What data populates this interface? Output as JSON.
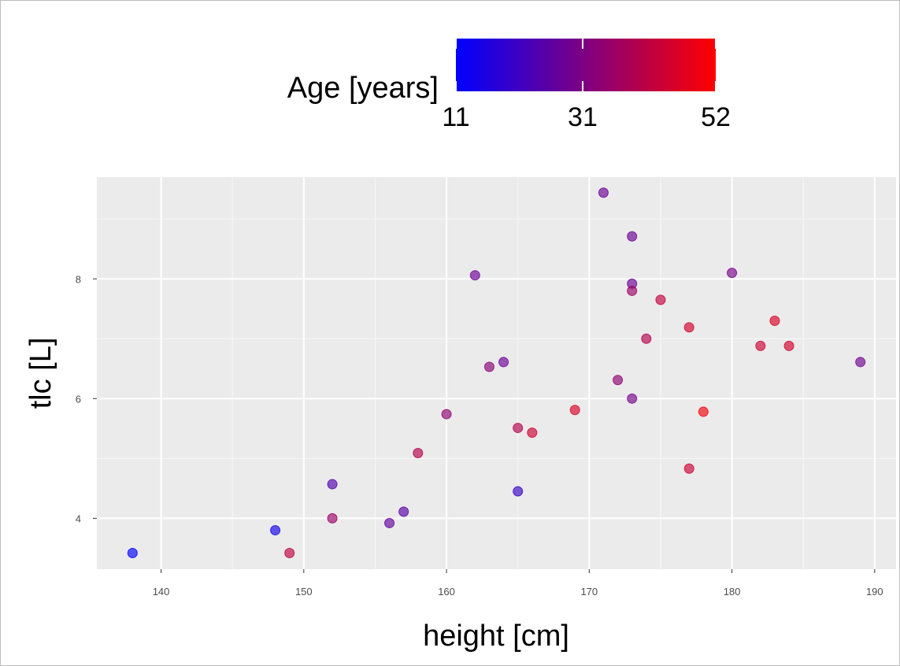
{
  "chart_data": {
    "type": "scatter",
    "xlabel": "height [cm]",
    "ylabel": "tlc [L]",
    "xlim": [
      135.5,
      191.5
    ],
    "ylim": [
      3.15,
      9.7
    ],
    "x_ticks": [
      140,
      150,
      160,
      170,
      180,
      190
    ],
    "y_ticks": [
      4,
      6,
      8
    ],
    "grid": true,
    "legend": {
      "title": "Age [years]",
      "placement": "top",
      "type": "colorbar",
      "min": 11,
      "max": 52,
      "ticks": [
        11,
        31,
        52
      ],
      "low_color": "#0000ff",
      "high_color": "#ff0000"
    },
    "points": [
      {
        "x": 138,
        "y": 3.42,
        "age": 11
      },
      {
        "x": 148,
        "y": 3.8,
        "age": 14
      },
      {
        "x": 149,
        "y": 3.42,
        "age": 42
      },
      {
        "x": 152,
        "y": 4.57,
        "age": 24
      },
      {
        "x": 152,
        "y": 4.0,
        "age": 36
      },
      {
        "x": 156,
        "y": 3.92,
        "age": 27
      },
      {
        "x": 157,
        "y": 4.11,
        "age": 25
      },
      {
        "x": 158,
        "y": 5.09,
        "age": 40
      },
      {
        "x": 160,
        "y": 5.74,
        "age": 34
      },
      {
        "x": 162,
        "y": 8.06,
        "age": 28
      },
      {
        "x": 163,
        "y": 6.53,
        "age": 33
      },
      {
        "x": 164,
        "y": 6.61,
        "age": 28
      },
      {
        "x": 165,
        "y": 4.45,
        "age": 20
      },
      {
        "x": 165,
        "y": 5.51,
        "age": 40
      },
      {
        "x": 166,
        "y": 5.43,
        "age": 44
      },
      {
        "x": 169,
        "y": 5.81,
        "age": 46
      },
      {
        "x": 171,
        "y": 9.44,
        "age": 28
      },
      {
        "x": 172,
        "y": 6.31,
        "age": 34
      },
      {
        "x": 173,
        "y": 8.71,
        "age": 28
      },
      {
        "x": 173,
        "y": 7.92,
        "age": 28
      },
      {
        "x": 173,
        "y": 7.8,
        "age": 36
      },
      {
        "x": 173,
        "y": 6.0,
        "age": 30
      },
      {
        "x": 174,
        "y": 7.0,
        "age": 40
      },
      {
        "x": 175,
        "y": 7.65,
        "age": 42
      },
      {
        "x": 177,
        "y": 7.19,
        "age": 45
      },
      {
        "x": 177,
        "y": 4.83,
        "age": 44
      },
      {
        "x": 178,
        "y": 5.78,
        "age": 50
      },
      {
        "x": 180,
        "y": 8.1,
        "age": 30
      },
      {
        "x": 182,
        "y": 6.88,
        "age": 44
      },
      {
        "x": 183,
        "y": 7.3,
        "age": 46
      },
      {
        "x": 184,
        "y": 6.88,
        "age": 45
      },
      {
        "x": 189,
        "y": 6.61,
        "age": 29
      }
    ]
  }
}
